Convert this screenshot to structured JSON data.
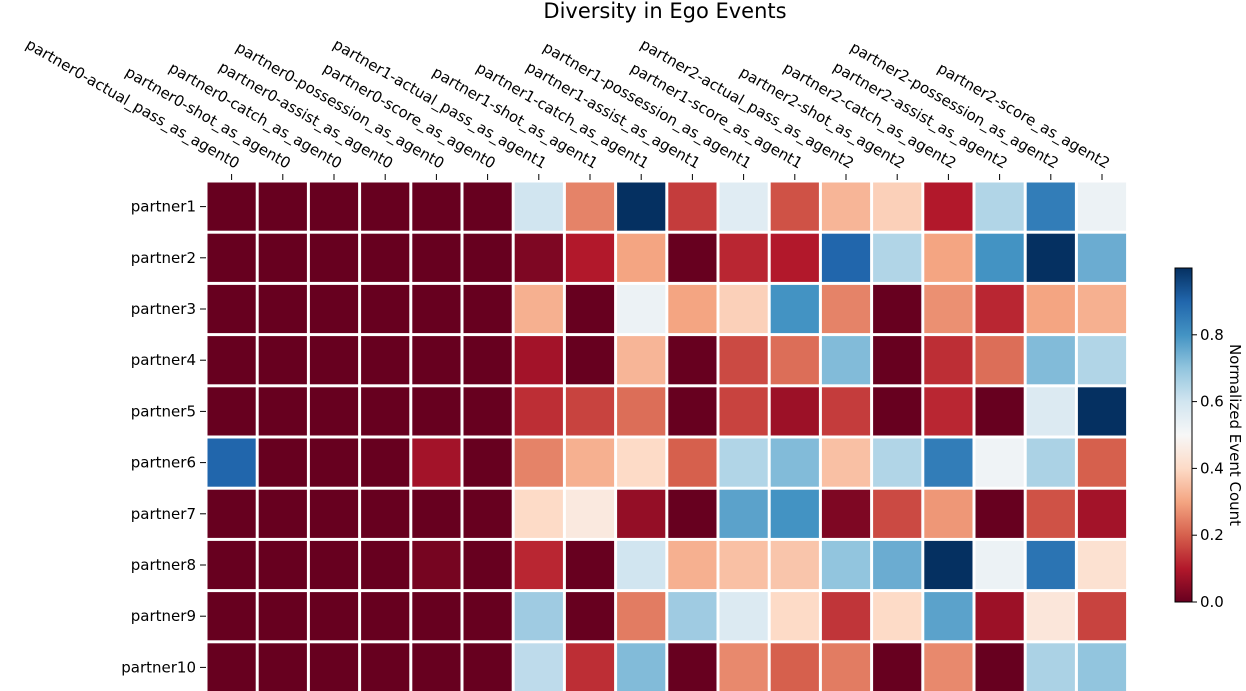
{
  "chart_data": {
    "type": "heatmap",
    "title": "Diversity in Ego Events",
    "columns": [
      "partner0-actual_pass_as_agent0",
      "partner0-shot_as_agent0",
      "partner0-catch_as_agent0",
      "partner0-assist_as_agent0",
      "partner0-possession_as_agent0",
      "partner0-score_as_agent0",
      "partner1-actual_pass_as_agent1",
      "partner1-shot_as_agent1",
      "partner1-catch_as_agent1",
      "partner1-assist_as_agent1",
      "partner1-possession_as_agent1",
      "partner1-score_as_agent1",
      "partner2-actual_pass_as_agent2",
      "partner2-shot_as_agent2",
      "partner2-catch_as_agent2",
      "partner2-assist_as_agent2",
      "partner2-possession_as_agent2",
      "partner2-score_as_agent2"
    ],
    "rows": [
      "partner1",
      "partner2",
      "partner3",
      "partner4",
      "partner5",
      "partner6",
      "partner7",
      "partner8",
      "partner9",
      "partner10"
    ],
    "values": [
      [
        0.0,
        0.0,
        0.0,
        0.0,
        0.0,
        0.0,
        0.6,
        0.25,
        1.0,
        0.15,
        0.56,
        0.18,
        0.33,
        0.38,
        0.1,
        0.65,
        0.85,
        0.53
      ],
      [
        0.0,
        0.0,
        0.0,
        0.0,
        0.0,
        0.0,
        0.03,
        0.1,
        0.3,
        0.0,
        0.12,
        0.1,
        0.9,
        0.65,
        0.3,
        0.8,
        1.0,
        0.75
      ],
      [
        0.0,
        0.0,
        0.0,
        0.0,
        0.0,
        0.0,
        0.32,
        0.0,
        0.53,
        0.3,
        0.38,
        0.8,
        0.25,
        0.0,
        0.27,
        0.12,
        0.3,
        0.32
      ],
      [
        0.0,
        0.0,
        0.0,
        0.0,
        0.0,
        0.0,
        0.08,
        0.0,
        0.33,
        0.0,
        0.17,
        0.22,
        0.72,
        0.0,
        0.13,
        0.22,
        0.72,
        0.65
      ],
      [
        0.0,
        0.0,
        0.0,
        0.0,
        0.0,
        0.0,
        0.13,
        0.16,
        0.22,
        0.0,
        0.16,
        0.07,
        0.15,
        0.0,
        0.12,
        0.0,
        0.57,
        1.0
      ],
      [
        0.9,
        0.0,
        0.0,
        0.0,
        0.08,
        0.0,
        0.25,
        0.32,
        0.4,
        0.2,
        0.65,
        0.72,
        0.35,
        0.65,
        0.85,
        0.52,
        0.66,
        0.2
      ],
      [
        0.0,
        0.0,
        0.0,
        0.0,
        0.0,
        0.0,
        0.4,
        0.45,
        0.06,
        0.0,
        0.77,
        0.8,
        0.03,
        0.17,
        0.28,
        0.0,
        0.18,
        0.08
      ],
      [
        0.0,
        0.0,
        0.0,
        0.0,
        0.02,
        0.0,
        0.12,
        0.0,
        0.6,
        0.32,
        0.35,
        0.36,
        0.7,
        0.75,
        1.0,
        0.53,
        0.87,
        0.42
      ],
      [
        0.0,
        0.0,
        0.0,
        0.0,
        0.0,
        0.0,
        0.68,
        0.0,
        0.24,
        0.68,
        0.57,
        0.4,
        0.14,
        0.4,
        0.77,
        0.07,
        0.44,
        0.16
      ],
      [
        0.0,
        0.0,
        0.0,
        0.0,
        0.0,
        0.0,
        0.63,
        0.13,
        0.72,
        0.0,
        0.26,
        0.2,
        0.24,
        0.0,
        0.26,
        0.0,
        0.66,
        0.7
      ]
    ],
    "colorbar": {
      "label": "Normalized Event Count",
      "range": [
        0,
        1
      ],
      "ticks": [
        0.0,
        0.2,
        0.4,
        0.6,
        0.8
      ],
      "tick_labels": [
        "0.0",
        "0.2",
        "0.4",
        "0.6",
        "0.8"
      ],
      "colormap": "RdBu"
    }
  }
}
